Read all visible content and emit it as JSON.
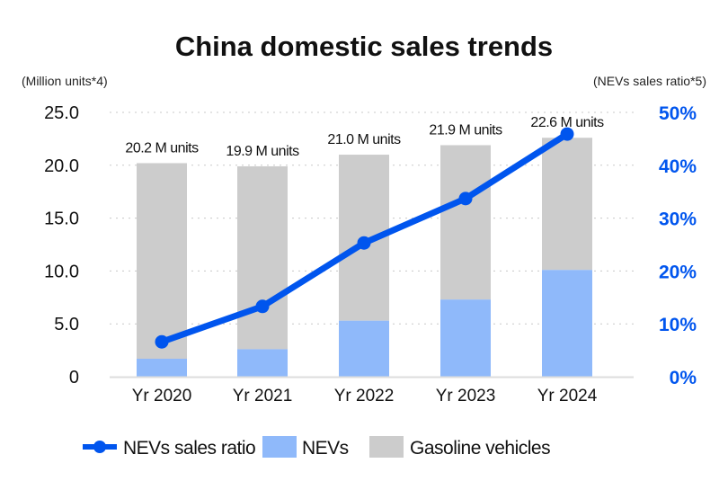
{
  "chart_data": {
    "type": "bar",
    "title": "China domestic sales trends",
    "ylabel": "(Million units*4)",
    "y2label": "(NEVs sales ratio*5)",
    "ylim": [
      0,
      25
    ],
    "y2lim": [
      0,
      50
    ],
    "yticks": [
      "0",
      "5.0",
      "10.0",
      "15.0",
      "20.0",
      "25.0"
    ],
    "y2ticks": [
      "0%",
      "10%",
      "20%",
      "30%",
      "40%",
      "50%"
    ],
    "categories": [
      "Yr 2020",
      "Yr 2021",
      "Yr 2022",
      "Yr 2023",
      "Yr 2024"
    ],
    "totals": [
      20.2,
      19.9,
      21.0,
      21.9,
      22.6
    ],
    "total_labels": [
      "20.2 M units",
      "19.9 M units",
      "21.0 M units",
      "21.9 M units",
      "22.6 M units"
    ],
    "series": [
      {
        "name": "NEVs sales ratio",
        "type": "line",
        "axis": "right",
        "color": "#0055ee",
        "values": [
          6.6,
          13.3,
          25.3,
          33.7,
          45.9
        ]
      },
      {
        "name": "NEVs",
        "type": "bar",
        "axis": "left",
        "color": "#8fb9fa",
        "values": [
          1.7,
          2.6,
          5.3,
          7.3,
          10.1
        ]
      },
      {
        "name": "Gasoline vehicles",
        "type": "bar",
        "axis": "left",
        "color": "#cccccc",
        "values": [
          18.5,
          17.3,
          15.7,
          14.6,
          12.5
        ]
      }
    ],
    "grid": true,
    "legend": "bottom"
  }
}
